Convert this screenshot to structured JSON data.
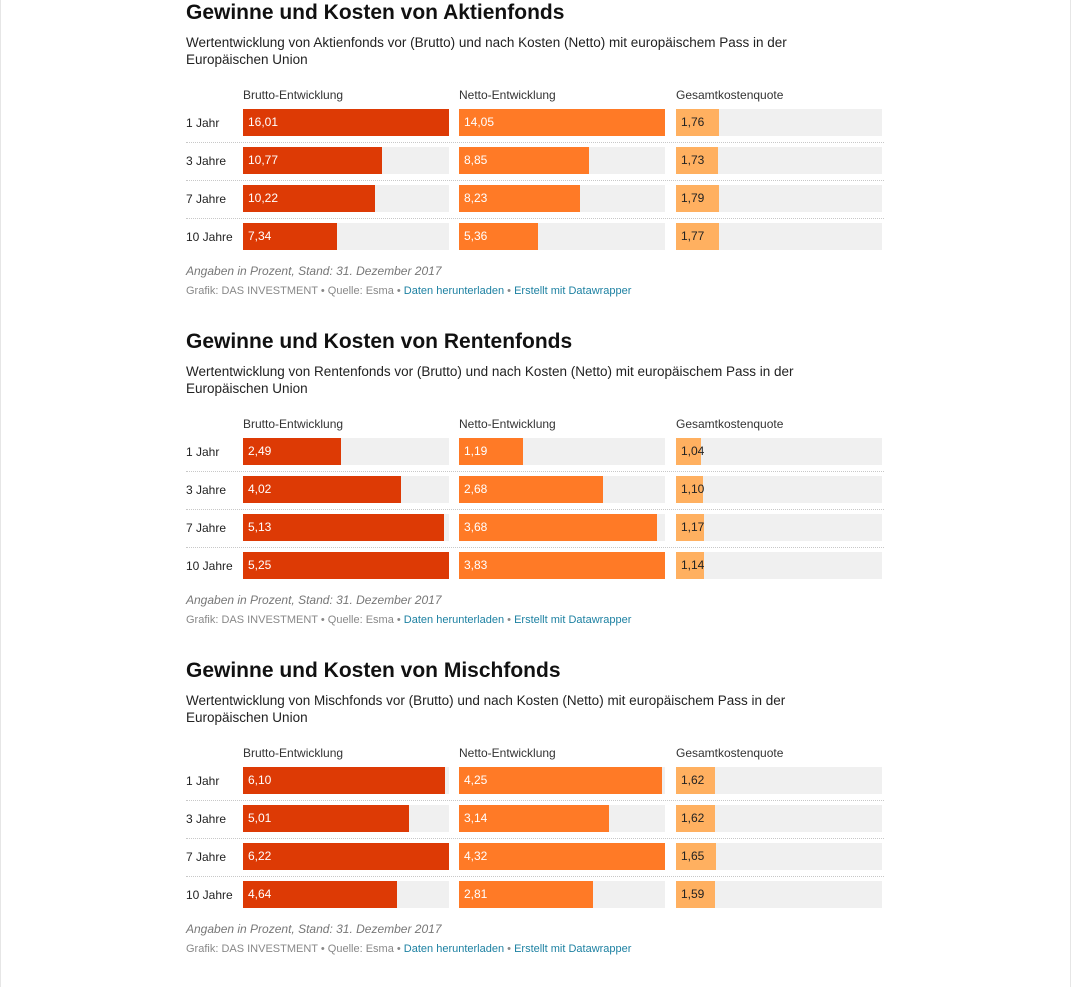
{
  "colors": {
    "brutto": "#dd3a05",
    "netto": "#ff7a26",
    "kosten": "#ffb060",
    "track": "#f0f0f0",
    "link": "#1d81a2"
  },
  "columns": [
    "Brutto-Entwicklung",
    "Netto-Entwicklung",
    "Gesamtkostenquote"
  ],
  "source": {
    "grafik": "Grafik: DAS INVESTMENT",
    "sep": " • ",
    "quelle": "Quelle: Esma",
    "download": "Daten herunterladen",
    "created": "Erstellt mit Datawrapper"
  },
  "note": "Angaben in Prozent, Stand: 31. Dezember 2017",
  "chart_data": [
    {
      "type": "bar",
      "title": "Gewinne und Kosten von Aktienfonds",
      "subtitle": "Wertentwicklung von Aktienfonds vor (Brutto) und nach Kosten (Netto) mit europäischem Pass in der Europäischen Union",
      "categories": [
        "1 Jahr",
        "3 Jahre",
        "7 Jahre",
        "10 Jahre"
      ],
      "series": [
        {
          "name": "Brutto-Entwicklung",
          "values": [
            "16,01",
            "10,77",
            "10,22",
            "7,34"
          ]
        },
        {
          "name": "Netto-Entwicklung",
          "values": [
            "14,05",
            "8,85",
            "8,23",
            "5,36"
          ]
        },
        {
          "name": "Gesamtkostenquote",
          "values": [
            "1,76",
            "1,73",
            "1,79",
            "1,77"
          ]
        }
      ],
      "note": "Angaben in Prozent, Stand: 31. Dezember 2017"
    },
    {
      "type": "bar",
      "title": "Gewinne und Kosten von Rentenfonds",
      "subtitle": "Wertentwicklung von Rentenfonds vor (Brutto) und nach Kosten (Netto) mit europäischem Pass in der Europäischen Union",
      "categories": [
        "1 Jahr",
        "3 Jahre",
        "7 Jahre",
        "10 Jahre"
      ],
      "series": [
        {
          "name": "Brutto-Entwicklung",
          "values": [
            "2,49",
            "4,02",
            "5,13",
            "5,25"
          ]
        },
        {
          "name": "Netto-Entwicklung",
          "values": [
            "1,19",
            "2,68",
            "3,68",
            "3,83"
          ]
        },
        {
          "name": "Gesamtkostenquote",
          "values": [
            "1,04",
            "1,10",
            "1,17",
            "1,14"
          ]
        }
      ],
      "note": "Angaben in Prozent, Stand: 31. Dezember 2017"
    },
    {
      "type": "bar",
      "title": "Gewinne und Kosten von Mischfonds",
      "subtitle": "Wertentwicklung von Mischfonds vor (Brutto) und nach Kosten (Netto) mit europäischem Pass in der Europäischen Union",
      "categories": [
        "1 Jahr",
        "3 Jahre",
        "7 Jahre",
        "10 Jahre"
      ],
      "series": [
        {
          "name": "Brutto-Entwicklung",
          "values": [
            "6,10",
            "5,01",
            "6,22",
            "4,64"
          ]
        },
        {
          "name": "Netto-Entwicklung",
          "values": [
            "4,25",
            "3,14",
            "4,32",
            "2,81"
          ]
        },
        {
          "name": "Gesamtkostenquote",
          "values": [
            "1,62",
            "1,62",
            "1,65",
            "1,59"
          ]
        }
      ],
      "note": "Angaben in Prozent, Stand: 31. Dezember 2017"
    }
  ]
}
